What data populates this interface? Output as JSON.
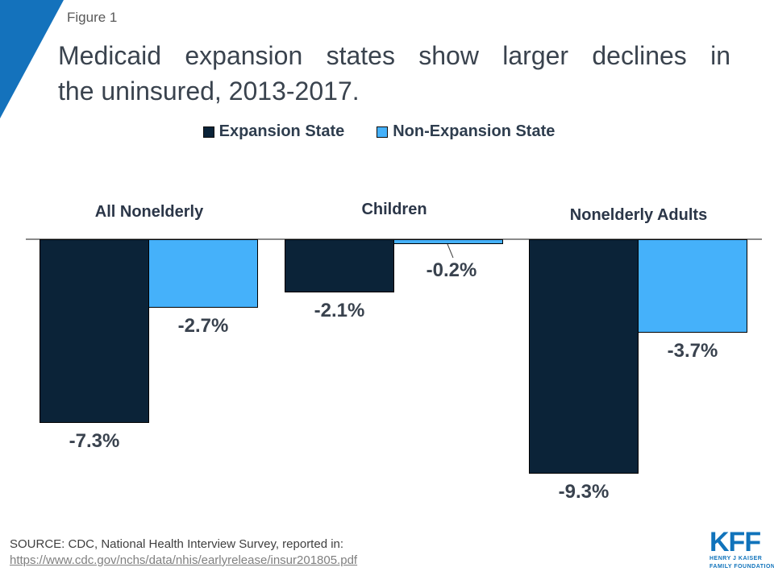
{
  "header": {
    "figure_label": "Figure 1",
    "title_line1": "Medicaid expansion states show larger declines in",
    "title_line2": "the uninsured, 2013-2017."
  },
  "chart_data": {
    "type": "bar",
    "title": "Medicaid expansion states show larger declines in the uninsured, 2013-2017.",
    "categories": [
      "All Nonelderly",
      "Children",
      "Nonelderly Adults"
    ],
    "series": [
      {
        "name": "Expansion State",
        "values": [
          -7.3,
          -2.1,
          -9.3
        ],
        "color": "#0B2338"
      },
      {
        "name": "Non-Expansion State",
        "values": [
          -2.7,
          -0.2,
          -3.7
        ],
        "color": "#45B1FA"
      }
    ],
    "data_labels": [
      [
        "-7.3%",
        "-2.1%",
        "-9.3%"
      ],
      [
        "-2.7%",
        "-0.2%",
        "-3.7%"
      ]
    ],
    "ylim": [
      -10,
      0
    ],
    "baseline_value": 0,
    "grid": false,
    "legend_position": "top",
    "bar_border_color": "#000000",
    "axis_line_color": "#8A8A8A"
  },
  "footer": {
    "source_text": "SOURCE: CDC, National Health Interview Survey, reported in:",
    "source_url": "https://www.cdc.gov/nchs/data/nhis/earlyrelease/insur201805.pdf",
    "logo_text": "KFF",
    "logo_subtext_line1": "HENRY J KAISER",
    "logo_subtext_line2": "FAMILY FOUNDATION"
  },
  "colors": {
    "accent_blue": "#1472BC",
    "expansion_bar": "#0B2338",
    "non_expansion_bar": "#45B1FA",
    "title_text": "#3A434E",
    "kff_blue": "#1073BB"
  }
}
